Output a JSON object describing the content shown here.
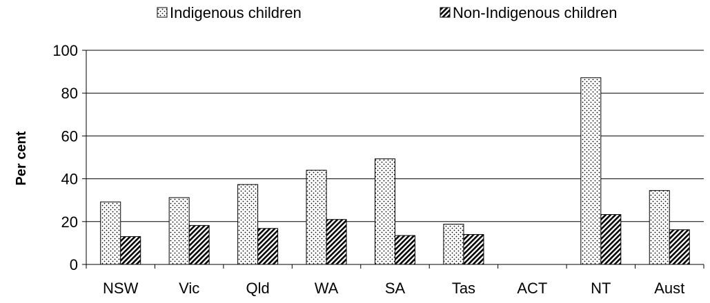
{
  "chart_data": {
    "type": "bar",
    "categories": [
      "NSW",
      "Vic",
      "Qld",
      "WA",
      "SA",
      "Tas",
      "ACT",
      "NT",
      "Aust"
    ],
    "series": [
      {
        "name": "Indigenous children",
        "values": [
          29.2,
          31.2,
          37.3,
          44.0,
          49.3,
          18.8,
          null,
          87.2,
          34.5
        ],
        "pattern": "dots"
      },
      {
        "name": "Non-Indigenous children",
        "values": [
          13.0,
          18.2,
          16.8,
          21.0,
          13.5,
          14.0,
          null,
          23.3,
          16.2
        ],
        "pattern": "diagonal-hatch"
      }
    ],
    "title": "",
    "xlabel": "",
    "ylabel": "Per cent",
    "ylim": [
      0,
      100
    ],
    "yticks": [
      0,
      20,
      40,
      60,
      80,
      100
    ],
    "grid": true,
    "legend_position": "top"
  }
}
